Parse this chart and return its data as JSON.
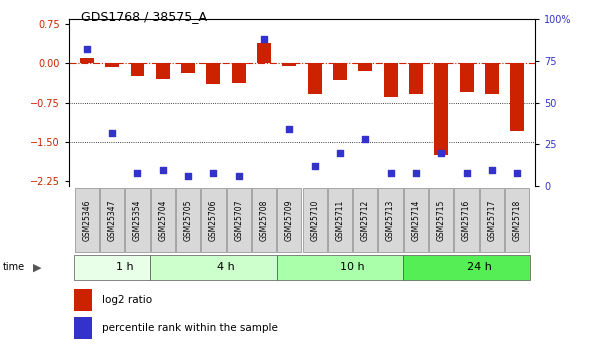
{
  "title": "GDS1768 / 38575_A",
  "samples": [
    "GSM25346",
    "GSM25347",
    "GSM25354",
    "GSM25704",
    "GSM25705",
    "GSM25706",
    "GSM25707",
    "GSM25708",
    "GSM25709",
    "GSM25710",
    "GSM25711",
    "GSM25712",
    "GSM25713",
    "GSM25714",
    "GSM25715",
    "GSM25716",
    "GSM25717",
    "GSM25718"
  ],
  "log2_ratio": [
    0.1,
    -0.07,
    -0.25,
    -0.3,
    -0.18,
    -0.4,
    -0.38,
    0.4,
    -0.05,
    -0.58,
    -0.32,
    -0.15,
    -0.65,
    -0.58,
    -1.75,
    -0.55,
    -0.58,
    -1.3
  ],
  "percentile_rank": [
    82,
    32,
    8,
    10,
    6,
    8,
    6,
    88,
    34,
    12,
    20,
    28,
    8,
    8,
    20,
    8,
    10,
    8
  ],
  "ylim_left": [
    -2.35,
    0.85
  ],
  "ylim_right": [
    0,
    100
  ],
  "yticks_left": [
    0.75,
    0.0,
    -0.75,
    -1.5,
    -2.25
  ],
  "yticks_right": [
    0,
    25,
    50,
    75,
    100
  ],
  "time_groups": [
    {
      "label": "1 h",
      "start": 0,
      "end": 3
    },
    {
      "label": "4 h",
      "start": 3,
      "end": 8
    },
    {
      "label": "10 h",
      "start": 8,
      "end": 13
    },
    {
      "label": "24 h",
      "start": 13,
      "end": 18
    }
  ],
  "group_colors": [
    "#e8ffe8",
    "#ccffcc",
    "#aaffaa",
    "#55ee55"
  ],
  "bar_color": "#cc2200",
  "dot_color": "#3333cc",
  "bar_width": 0.55,
  "dot_size": 15,
  "sample_box_color": "#d8d8d8",
  "sample_box_edge": "#888888"
}
